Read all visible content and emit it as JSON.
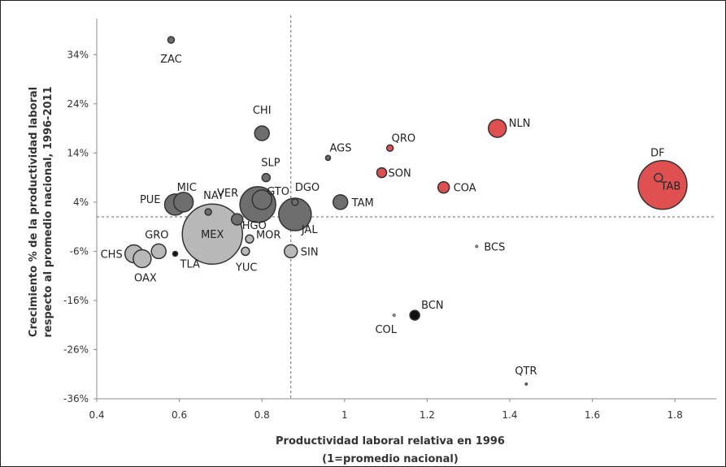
{
  "chart_data": {
    "type": "scatter",
    "xlabel_lines": [
      "Productividad laboral relativa en 1996",
      "(1=promedio nacional)"
    ],
    "ylabel_lines": [
      "Crecimiento % de la productividad laboral",
      "respecto al promedio nacional, 1996-2011"
    ],
    "xlim": [
      0.4,
      1.9
    ],
    "ylim": [
      -36,
      40
    ],
    "x_ticks": [
      0.4,
      0.6,
      0.8,
      1,
      1.2,
      1.4,
      1.6,
      1.8
    ],
    "x_tick_labels": [
      "0.4",
      "0.6",
      "0.8",
      "1",
      "1.2",
      "1.4",
      "1.6",
      "1.8"
    ],
    "y_ticks": [
      34,
      24,
      14,
      4,
      -6,
      -16,
      -26,
      -36
    ],
    "y_tick_labels": [
      "34%",
      "24%",
      "14%",
      "4%",
      "-6%",
      "-16%",
      "-26%",
      "-36%"
    ],
    "reference_lines": {
      "x": 0.87,
      "y": 1
    },
    "colors": {
      "dark": "#6e6e6e",
      "light": "#b8b8b8",
      "red": "#e05050",
      "black": "#111111",
      "outline": "#333333"
    },
    "points": [
      {
        "label": "ZAC",
        "x": 0.58,
        "y": 37.0,
        "size": 4,
        "color": "dark"
      },
      {
        "label": "CHI",
        "x": 0.8,
        "y": 18.0,
        "size": 9,
        "color": "dark"
      },
      {
        "label": "AGS",
        "x": 0.96,
        "y": 13.0,
        "size": 3,
        "color": "dark"
      },
      {
        "label": "QRO",
        "x": 1.11,
        "y": 15.0,
        "size": 4,
        "color": "red"
      },
      {
        "label": "NLN",
        "x": 1.37,
        "y": 19.0,
        "size": 11,
        "color": "red"
      },
      {
        "label": "DF",
        "x": 1.76,
        "y": 9.0,
        "size": 5,
        "color": "red"
      },
      {
        "label": "TAB",
        "x": 1.77,
        "y": 7.5,
        "size": 30,
        "color": "red"
      },
      {
        "label": "SON",
        "x": 1.09,
        "y": 10.0,
        "size": 6,
        "color": "red"
      },
      {
        "label": "COA",
        "x": 1.24,
        "y": 7.0,
        "size": 7,
        "color": "red"
      },
      {
        "label": "SLP",
        "x": 0.81,
        "y": 9.0,
        "size": 5,
        "color": "dark"
      },
      {
        "label": "GTO",
        "x": 0.8,
        "y": 4.5,
        "size": 12,
        "color": "dark"
      },
      {
        "label": "VER",
        "x": 0.79,
        "y": 3.5,
        "size": 22,
        "color": "dark"
      },
      {
        "label": "DGO",
        "x": 0.88,
        "y": 4.0,
        "size": 4,
        "color": "dark"
      },
      {
        "label": "JAL",
        "x": 0.88,
        "y": 1.5,
        "size": 20,
        "color": "dark"
      },
      {
        "label": "TAM",
        "x": 0.99,
        "y": 4.0,
        "size": 9,
        "color": "dark"
      },
      {
        "label": "MIC",
        "x": 0.61,
        "y": 4.0,
        "size": 12,
        "color": "dark"
      },
      {
        "label": "PUE",
        "x": 0.59,
        "y": 3.5,
        "size": 13,
        "color": "dark"
      },
      {
        "label": "NAY",
        "x": 0.67,
        "y": 2.0,
        "size": 4,
        "color": "dark"
      },
      {
        "label": "HGO",
        "x": 0.74,
        "y": 0.5,
        "size": 7,
        "color": "dark"
      },
      {
        "label": "MEX",
        "x": 0.68,
        "y": -2.5,
        "size": 37,
        "color": "light"
      },
      {
        "label": "MOR",
        "x": 0.77,
        "y": -3.5,
        "size": 5,
        "color": "light"
      },
      {
        "label": "YUC",
        "x": 0.76,
        "y": -6.0,
        "size": 5,
        "color": "light"
      },
      {
        "label": "SIN",
        "x": 0.87,
        "y": -6.0,
        "size": 8,
        "color": "light"
      },
      {
        "label": "GRO",
        "x": 0.55,
        "y": -6.0,
        "size": 9,
        "color": "light"
      },
      {
        "label": "CHS",
        "x": 0.49,
        "y": -6.5,
        "size": 11,
        "color": "light"
      },
      {
        "label": "OAX",
        "x": 0.51,
        "y": -7.5,
        "size": 11,
        "color": "light"
      },
      {
        "label": "TLA",
        "x": 0.59,
        "y": -6.5,
        "size": 3,
        "color": "black"
      },
      {
        "label": "BCS",
        "x": 1.32,
        "y": -5.0,
        "size": 1.5,
        "color": "light"
      },
      {
        "label": "COL",
        "x": 1.12,
        "y": -19.0,
        "size": 1.5,
        "color": "light"
      },
      {
        "label": "BCN",
        "x": 1.17,
        "y": -19.0,
        "size": 6,
        "color": "black"
      },
      {
        "label": "QTR",
        "x": 1.44,
        "y": -33.0,
        "size": 1.5,
        "color": "dark"
      }
    ]
  }
}
